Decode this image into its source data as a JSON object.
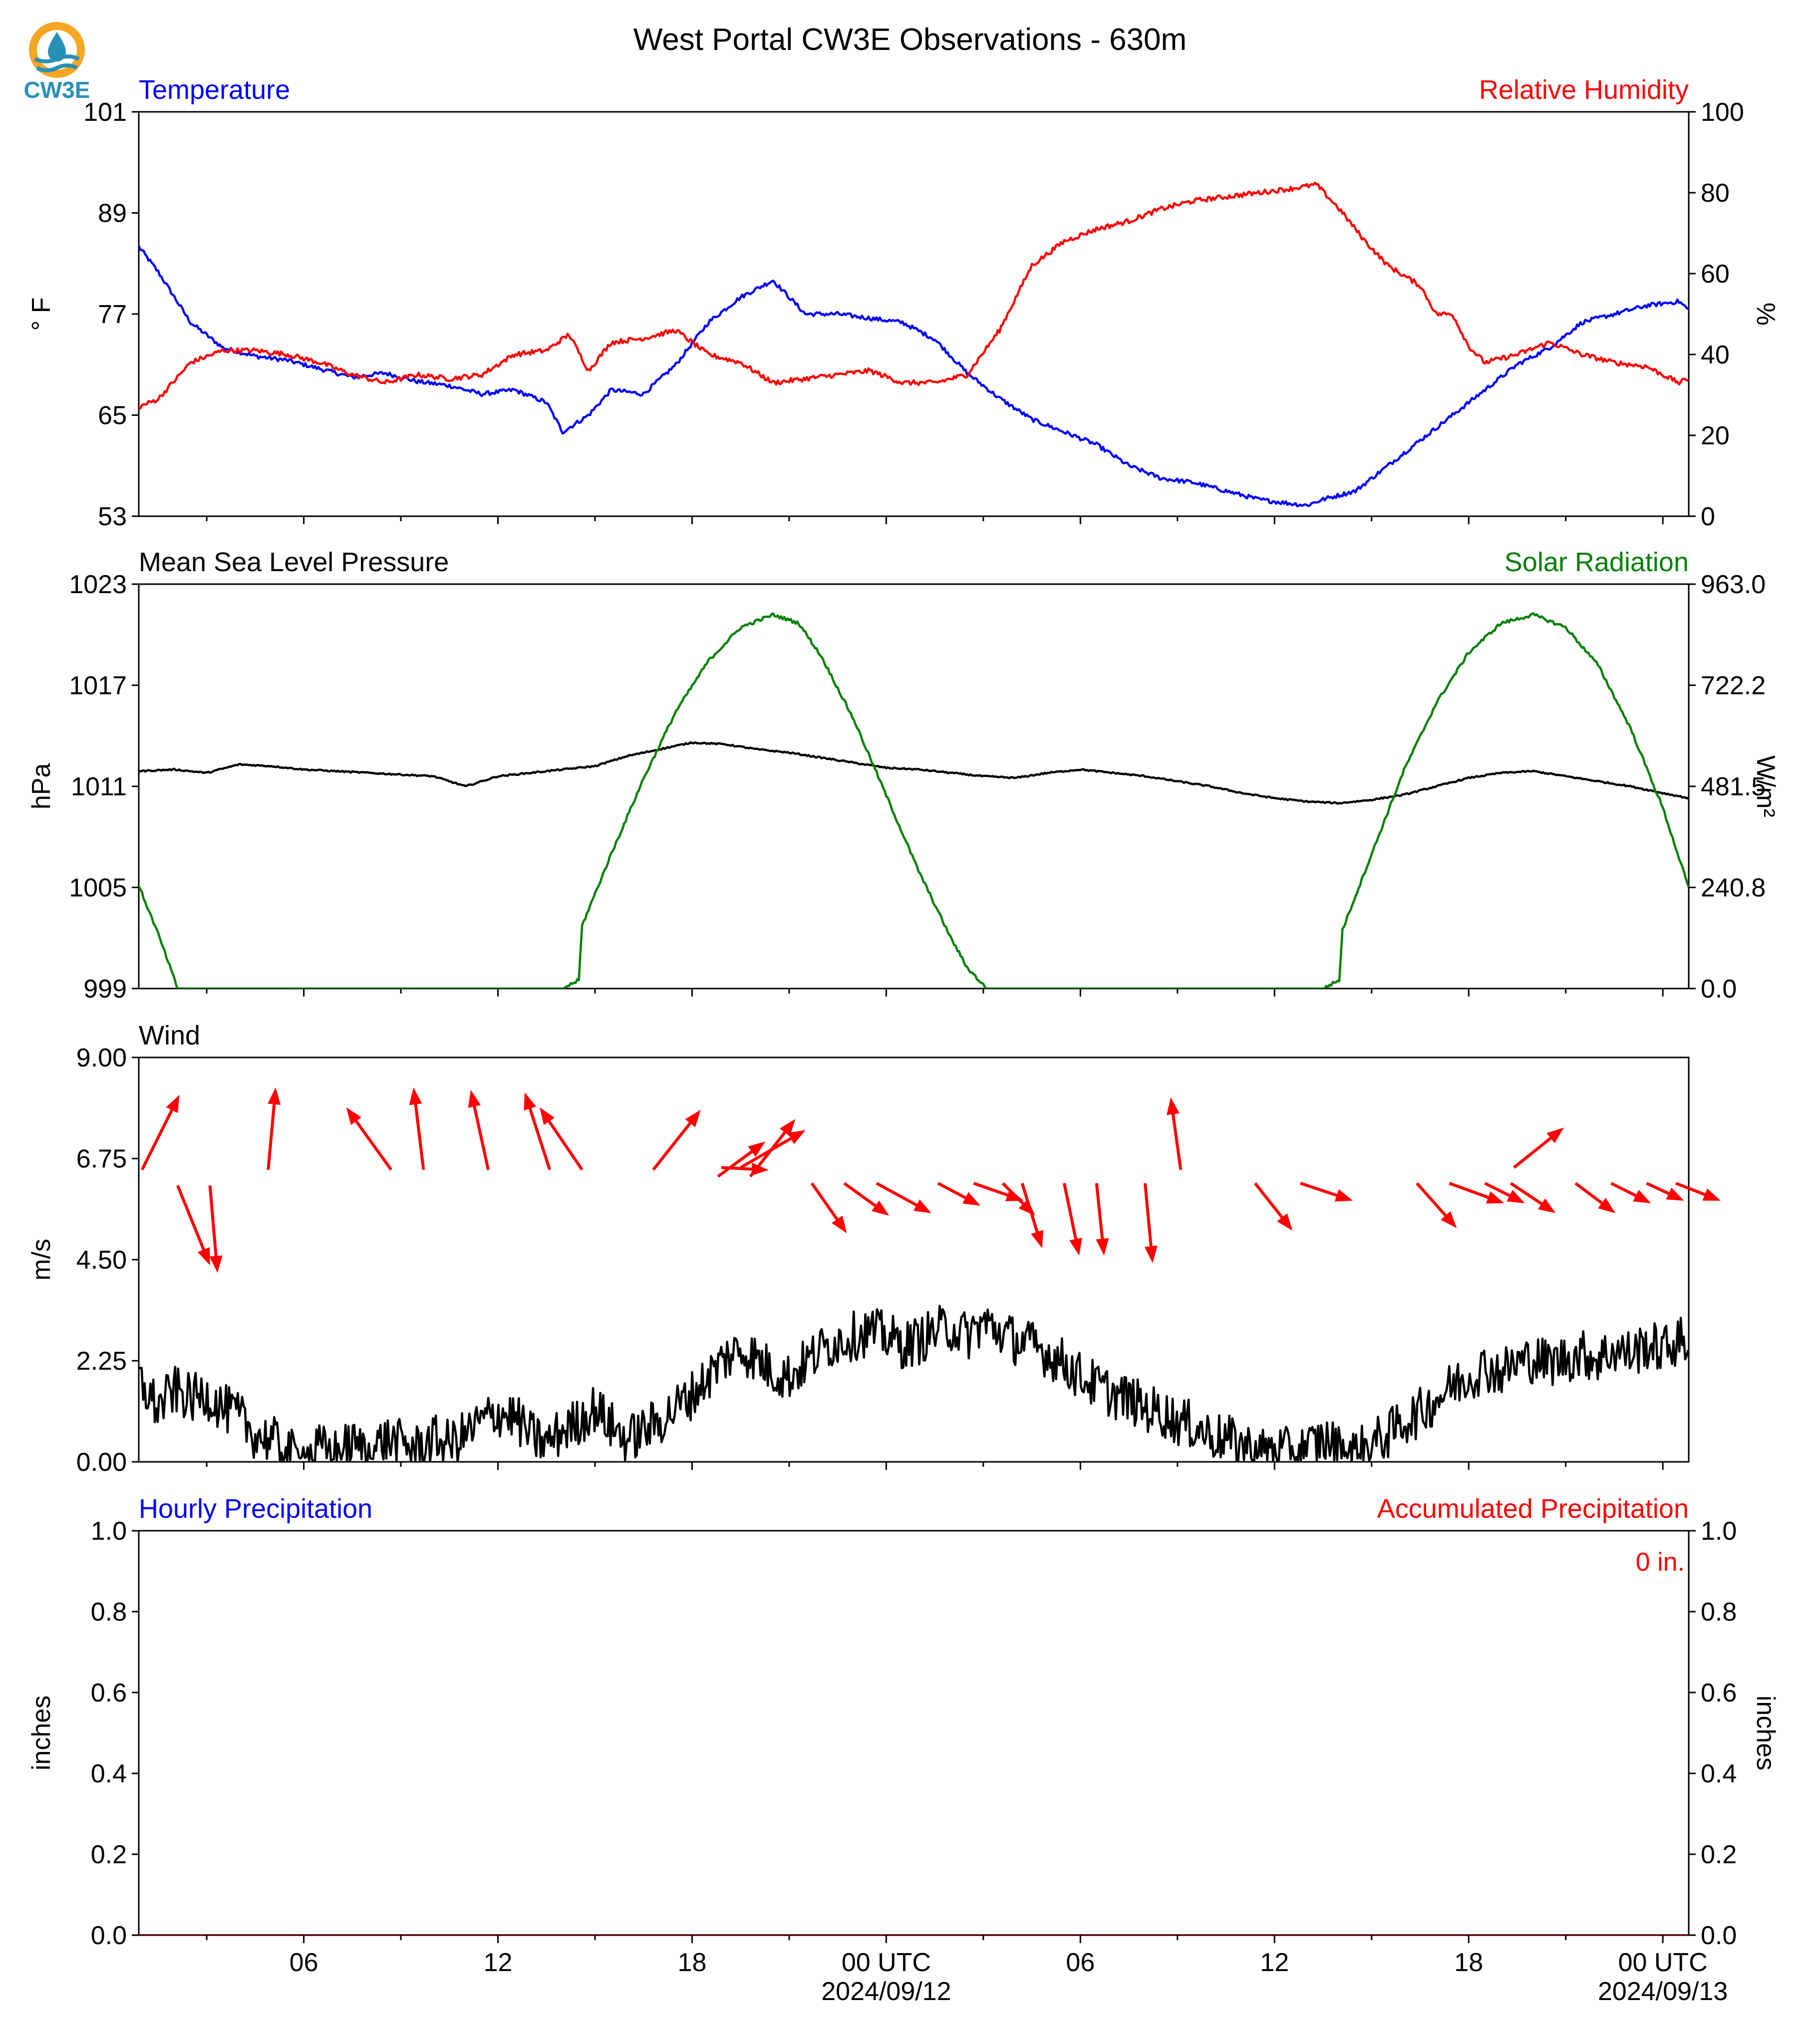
{
  "title": "West Portal CW3E Observations - 630m",
  "logo": {
    "text": "CW3E",
    "colors": {
      "ring": "#f5a623",
      "drop": "#2a8fb7"
    }
  },
  "colors": {
    "blue": "#0000ff",
    "red": "#ff0000",
    "green": "#008000",
    "black": "#000000"
  },
  "time_axis": {
    "start_hour": 0.9,
    "end_hour": 48.8,
    "ticks": [
      {
        "h": 6,
        "label": "06",
        "sub": ""
      },
      {
        "h": 12,
        "label": "12",
        "sub": ""
      },
      {
        "h": 18,
        "label": "18",
        "sub": ""
      },
      {
        "h": 24,
        "label": "00 UTC",
        "sub": "2024/09/12"
      },
      {
        "h": 30,
        "label": "06",
        "sub": ""
      },
      {
        "h": 36,
        "label": "12",
        "sub": ""
      },
      {
        "h": 42,
        "label": "18",
        "sub": ""
      },
      {
        "h": 48,
        "label": "00 UTC",
        "sub": "2024/09/13"
      }
    ]
  },
  "chart_data": [
    {
      "type": "line",
      "left_title": "Temperature",
      "right_title": "Relative Humidity",
      "ylabel": "° F",
      "ylabel_right": "%",
      "ylim": [
        53,
        101
      ],
      "yticks": [
        "101",
        "89",
        "77",
        "65",
        "53"
      ],
      "ylim_right": [
        0,
        100
      ],
      "yticks_right": [
        "100",
        "80",
        "60",
        "40",
        "20",
        "0"
      ],
      "series": [
        {
          "color": "#0000ff",
          "axis": "left",
          "x": [
            0.9,
            1.5,
            2.5,
            3.5,
            4.5,
            5.5,
            6.5,
            7.5,
            8.5,
            9.5,
            10.5,
            11.5,
            12.5,
            13.5,
            14.0,
            14.8,
            15.5,
            16.5,
            17.5,
            18.5,
            19.5,
            20.5,
            21.5,
            22.5,
            23.5,
            24.5,
            25.5,
            26.5,
            27.5,
            28.5,
            29.5,
            30.5,
            31.5,
            32.5,
            33.5,
            34.5,
            35.5,
            36.5,
            37.0,
            37.5,
            38.5,
            39.5,
            40.5,
            41.5,
            42.5,
            43.5,
            44.5,
            45.5,
            46.5,
            47.5,
            48.5,
            48.8
          ],
          "y": [
            85,
            82,
            76,
            73,
            72,
            71.5,
            70.5,
            69.5,
            70,
            69,
            68.5,
            67.5,
            68,
            66.5,
            63,
            65,
            68,
            67.5,
            71,
            76,
            79,
            81,
            77,
            77,
            76.5,
            76,
            74,
            70,
            67,
            64.5,
            63,
            61.5,
            59,
            57.5,
            57,
            56,
            55,
            54.5,
            54.3,
            55,
            56,
            59,
            62,
            65,
            68,
            71,
            73,
            76,
            77,
            78,
            78.5,
            77.5
          ]
        },
        {
          "color": "#ff0000",
          "axis": "right",
          "x": [
            0.9,
            1.5,
            2.5,
            3.5,
            4.5,
            5.5,
            6.5,
            7.5,
            8.5,
            9.5,
            10.5,
            11.5,
            12.5,
            13.5,
            14.2,
            14.8,
            15.5,
            16.5,
            17.5,
            18.5,
            19.5,
            20.5,
            21.5,
            22.5,
            23.5,
            24.5,
            25.5,
            26.5,
            27.5,
            28.0,
            28.5,
            29.5,
            30.5,
            31.5,
            32.5,
            33.5,
            34.5,
            35.5,
            36.5,
            37.3,
            38.0,
            38.8,
            39.5,
            40.5,
            41.0,
            41.5,
            42.0,
            42.5,
            43.5,
            44.5,
            45.5,
            46.5,
            47.5,
            48.5,
            48.8
          ],
          "y": [
            27,
            29,
            38,
            41,
            41,
            40,
            38,
            35,
            33,
            35,
            34,
            35,
            40,
            41,
            45,
            36,
            43,
            44,
            46,
            40,
            38,
            33,
            34,
            35,
            36,
            33,
            33,
            35,
            46,
            54,
            62,
            68,
            71,
            73,
            76,
            78,
            79,
            80,
            81,
            82,
            76,
            68,
            62,
            57,
            50,
            50,
            42,
            38,
            40,
            43,
            40,
            38,
            37,
            33,
            34
          ]
        }
      ]
    },
    {
      "type": "line",
      "left_title": "Mean Sea Level Pressure",
      "right_title": "Solar Radiation",
      "ylabel": "hPa",
      "ylabel_right": "W/m²",
      "ylim": [
        999,
        1023
      ],
      "yticks": [
        "1023",
        "1017",
        "1011",
        "1005",
        "999"
      ],
      "ylim_right": [
        0,
        963
      ],
      "yticks_right": [
        "963.0",
        "722.2",
        "481.5",
        "240.8",
        "0.0"
      ],
      "series": [
        {
          "color": "#000000",
          "axis": "left",
          "x": [
            0.9,
            2.0,
            3.0,
            4.0,
            5.0,
            6.0,
            7.0,
            8.0,
            9.0,
            10.0,
            10.5,
            11.0,
            12.0,
            13.0,
            14.0,
            15.0,
            16.0,
            17.0,
            18.0,
            19.0,
            20.0,
            21.0,
            22.0,
            23.0,
            24.0,
            25.0,
            26.0,
            27.0,
            28.0,
            29.0,
            30.0,
            31.0,
            32.0,
            33.0,
            34.0,
            35.0,
            36.0,
            37.0,
            38.0,
            39.0,
            40.0,
            41.0,
            42.0,
            43.0,
            44.0,
            45.0,
            46.0,
            47.0,
            48.0,
            48.8
          ],
          "y": [
            1011.9,
            1012.0,
            1011.8,
            1012.3,
            1012.2,
            1012.0,
            1011.9,
            1011.8,
            1011.7,
            1011.6,
            1011.3,
            1011.0,
            1011.6,
            1011.8,
            1012.0,
            1012.2,
            1012.8,
            1013.2,
            1013.6,
            1013.5,
            1013.2,
            1013.0,
            1012.7,
            1012.4,
            1012.1,
            1012.0,
            1011.8,
            1011.6,
            1011.5,
            1011.8,
            1012.0,
            1011.8,
            1011.6,
            1011.3,
            1011.0,
            1010.6,
            1010.3,
            1010.1,
            1010.0,
            1010.2,
            1010.5,
            1011.0,
            1011.5,
            1011.8,
            1011.9,
            1011.6,
            1011.3,
            1011.0,
            1010.6,
            1010.3
          ]
        },
        {
          "color": "#008000",
          "axis": "right",
          "x": [
            0.9,
            1.5,
            2.1,
            6.0,
            13.0,
            14.0,
            14.5,
            14.6,
            15.5,
            16.5,
            17.5,
            18.5,
            19.5,
            20.5,
            21.3,
            22.0,
            23.0,
            24.0,
            25.0,
            26.0,
            26.5,
            27.1,
            30.0,
            37.0,
            37.5,
            38.0,
            38.1,
            39.0,
            40.0,
            41.0,
            42.0,
            43.0,
            44.0,
            45.0,
            46.0,
            47.0,
            48.0,
            48.8
          ],
          "y": [
            245,
            130,
            0,
            0,
            0,
            0,
            20,
            150,
            320,
            500,
            660,
            780,
            860,
            890,
            870,
            790,
            640,
            460,
            280,
            120,
            50,
            0,
            0,
            0,
            0,
            20,
            140,
            320,
            520,
            680,
            800,
            870,
            890,
            860,
            770,
            620,
            430,
            240
          ]
        }
      ]
    },
    {
      "type": "line",
      "left_title": "Wind",
      "ylabel": "m/s",
      "ylim": [
        0,
        9
      ],
      "yticks": [
        "9.00",
        "6.75",
        "4.50",
        "2.25",
        "0.00"
      ],
      "series": [
        {
          "color": "#000000",
          "axis": "left",
          "x": [
            0.9,
            1.5,
            2.0,
            2.5,
            3.0,
            3.5,
            4.0,
            4.5,
            5.0,
            5.5,
            6.0,
            6.5,
            7.0,
            7.5,
            8.0,
            8.5,
            9.0,
            9.5,
            10.0,
            10.5,
            11.0,
            11.5,
            12.0,
            12.5,
            13.0,
            13.5,
            14.0,
            14.5,
            15.0,
            15.5,
            16.0,
            16.5,
            17.0,
            17.5,
            18.0,
            18.5,
            19.0,
            19.5,
            20.0,
            20.5,
            21.0,
            21.5,
            22.0,
            22.5,
            23.0,
            23.5,
            24.0,
            24.5,
            25.0,
            25.5,
            26.0,
            26.5,
            27.0,
            27.5,
            28.0,
            28.5,
            29.0,
            29.5,
            30.0,
            30.5,
            31.0,
            31.5,
            32.0,
            32.5,
            33.0,
            33.5,
            34.0,
            34.5,
            35.0,
            35.5,
            36.0,
            36.5,
            37.0,
            37.5,
            38.0,
            38.5,
            39.0,
            39.5,
            40.0,
            40.5,
            41.0,
            41.5,
            42.0,
            42.5,
            43.0,
            43.5,
            44.0,
            44.5,
            45.0,
            45.5,
            46.0,
            46.5,
            47.0,
            47.5,
            48.0,
            48.5,
            48.8
          ],
          "y": [
            1.8,
            1.2,
            1.6,
            1.4,
            1.5,
            1.2,
            1.0,
            0.6,
            0.5,
            0.2,
            0.1,
            0.3,
            0.2,
            0.4,
            0.2,
            0.5,
            0.4,
            0.3,
            0.5,
            0.4,
            0.6,
            0.9,
            1.1,
            1.0,
            0.6,
            0.4,
            0.7,
            0.9,
            1.2,
            0.8,
            0.5,
            0.7,
            0.9,
            1.2,
            1.5,
            1.9,
            2.3,
            2.5,
            2.3,
            2.0,
            1.9,
            2.2,
            2.5,
            2.7,
            2.8,
            2.9,
            2.8,
            2.6,
            2.7,
            2.9,
            3.0,
            2.8,
            3.1,
            2.9,
            2.7,
            2.6,
            2.4,
            2.2,
            1.9,
            1.7,
            1.5,
            1.4,
            1.2,
            1.1,
            0.9,
            0.8,
            0.6,
            0.5,
            0.4,
            0.2,
            0.3,
            0.2,
            0.3,
            0.5,
            0.3,
            0.2,
            0.4,
            0.6,
            0.9,
            1.1,
            1.4,
            1.7,
            1.9,
            2.1,
            2.0,
            2.2,
            2.3,
            2.2,
            2.3,
            2.4,
            2.3,
            2.5,
            2.4,
            2.6,
            2.5,
            2.7,
            2.6
          ]
        }
      ],
      "arrows": {
        "color": "#ff0000",
        "note_units": "u,v in m/s",
        "items": [
          {
            "h": 1.0,
            "s": 6.5,
            "u": 1.5,
            "v": 3.0
          },
          {
            "h": 2.1,
            "s": 6.15,
            "u": 1.3,
            "v": -3.2
          },
          {
            "h": 3.1,
            "s": 6.15,
            "u": 0.3,
            "v": -3.5
          },
          {
            "h": 4.9,
            "s": 6.5,
            "u": 0.3,
            "v": 3.3
          },
          {
            "h": 8.7,
            "s": 6.5,
            "u": -1.8,
            "v": 2.5
          },
          {
            "h": 9.7,
            "s": 6.5,
            "u": -0.4,
            "v": 3.3
          },
          {
            "h": 11.7,
            "s": 6.5,
            "u": -0.7,
            "v": 3.2
          },
          {
            "h": 13.6,
            "s": 6.5,
            "u": -1.0,
            "v": 3.1
          },
          {
            "h": 14.6,
            "s": 6.5,
            "u": -1.7,
            "v": 2.5
          },
          {
            "h": 16.8,
            "s": 6.5,
            "u": 1.9,
            "v": 2.4
          },
          {
            "h": 18.8,
            "s": 6.35,
            "u": 1.9,
            "v": 1.4
          },
          {
            "h": 19.8,
            "s": 6.35,
            "u": 1.8,
            "v": 2.3
          },
          {
            "h": 19.5,
            "s": 6.55,
            "u": 2.6,
            "v": 1.5
          },
          {
            "h": 18.9,
            "s": 6.55,
            "u": 1.9,
            "v": -0.1
          },
          {
            "h": 21.7,
            "s": 6.2,
            "u": 1.4,
            "v": -2.0
          },
          {
            "h": 22.7,
            "s": 6.2,
            "u": 1.8,
            "v": -1.3
          },
          {
            "h": 23.7,
            "s": 6.2,
            "u": 2.2,
            "v": -1.2
          },
          {
            "h": 25.6,
            "s": 6.2,
            "u": 1.7,
            "v": -0.9
          },
          {
            "h": 26.7,
            "s": 6.2,
            "u": 2.0,
            "v": -0.7
          },
          {
            "h": 27.6,
            "s": 6.2,
            "u": 1.3,
            "v": -1.3
          },
          {
            "h": 28.2,
            "s": 6.2,
            "u": 0.8,
            "v": -2.6
          },
          {
            "h": 29.5,
            "s": 6.2,
            "u": 0.6,
            "v": -2.9
          },
          {
            "h": 30.5,
            "s": 6.2,
            "u": 0.3,
            "v": -2.9
          },
          {
            "h": 32.0,
            "s": 6.2,
            "u": 0.3,
            "v": -3.2
          },
          {
            "h": 33.1,
            "s": 6.5,
            "u": -0.4,
            "v": 2.9
          },
          {
            "h": 35.4,
            "s": 6.2,
            "u": 1.5,
            "v": -1.9
          },
          {
            "h": 36.8,
            "s": 6.2,
            "u": 2.1,
            "v": -0.7
          },
          {
            "h": 40.4,
            "s": 6.2,
            "u": 1.6,
            "v": -1.8
          },
          {
            "h": 41.4,
            "s": 6.2,
            "u": 2.2,
            "v": -0.8
          },
          {
            "h": 42.5,
            "s": 6.2,
            "u": 1.6,
            "v": -0.8
          },
          {
            "h": 43.3,
            "s": 6.2,
            "u": 1.8,
            "v": -1.2
          },
          {
            "h": 45.3,
            "s": 6.2,
            "u": 1.6,
            "v": -1.2
          },
          {
            "h": 46.4,
            "s": 6.2,
            "u": 1.6,
            "v": -0.8
          },
          {
            "h": 47.5,
            "s": 6.2,
            "u": 1.5,
            "v": -0.7
          },
          {
            "h": 48.4,
            "s": 6.2,
            "u": 1.8,
            "v": -0.7
          },
          {
            "h": 43.4,
            "s": 6.55,
            "u": 2.0,
            "v": 1.6
          }
        ]
      }
    },
    {
      "type": "line",
      "left_title": "Hourly Precipitation",
      "right_title": "Accumulated Precipitation",
      "ylabel": "inches",
      "ylabel_right": "inches",
      "ylim": [
        0,
        1
      ],
      "yticks": [
        "1.0",
        "0.8",
        "0.6",
        "0.4",
        "0.2",
        "0.0"
      ],
      "ylim_right": [
        0,
        1
      ],
      "yticks_right": [
        "1.0",
        "0.8",
        "0.6",
        "0.4",
        "0.2",
        "0.0"
      ],
      "annotation": "0 in.",
      "series": [
        {
          "color": "#0000ff",
          "axis": "left",
          "x": [
            0.9,
            48.8
          ],
          "y": [
            0,
            0
          ]
        },
        {
          "color": "#8b0000",
          "axis": "right",
          "x": [
            0.9,
            48.8
          ],
          "y": [
            0,
            0
          ]
        }
      ]
    }
  ]
}
